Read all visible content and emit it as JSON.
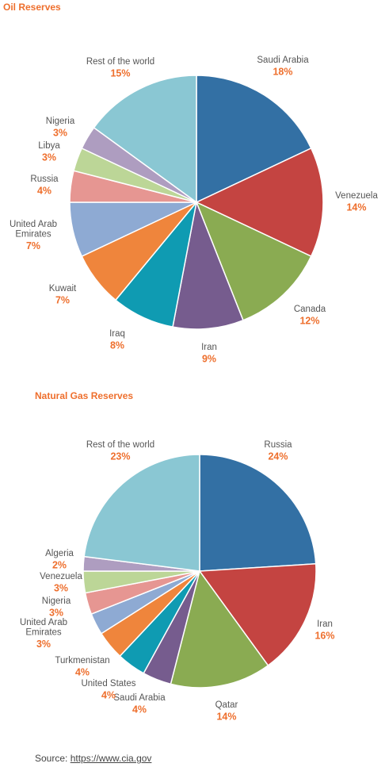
{
  "chart_data": [
    {
      "type": "pie",
      "title": "Oil Reserves",
      "slices": [
        {
          "label": "Saudi Arabia",
          "display": [
            "Saudi Arabia"
          ],
          "pct": 18,
          "pct_label": "18%",
          "color": "#3370a4"
        },
        {
          "label": "Venezuela",
          "display": [
            "Venezuela"
          ],
          "pct": 14,
          "pct_label": "14%",
          "color": "#c44441"
        },
        {
          "label": "Canada",
          "display": [
            "Canada"
          ],
          "pct": 12,
          "pct_label": "12%",
          "color": "#8aab52"
        },
        {
          "label": "Iran",
          "display": [
            "Iran"
          ],
          "pct": 9,
          "pct_label": "9%",
          "color": "#765c8e"
        },
        {
          "label": "Iraq",
          "display": [
            "Iraq"
          ],
          "pct": 8,
          "pct_label": "8%",
          "color": "#0f9bb2"
        },
        {
          "label": "Kuwait",
          "display": [
            "Kuwait"
          ],
          "pct": 7,
          "pct_label": "7%",
          "color": "#ef853c"
        },
        {
          "label": "United Arab Emirates",
          "display": [
            "United Arab",
            "Emirates"
          ],
          "pct": 7,
          "pct_label": "7%",
          "color": "#8eaad3"
        },
        {
          "label": "Russia",
          "display": [
            "Russia"
          ],
          "pct": 4,
          "pct_label": "4%",
          "color": "#e69692"
        },
        {
          "label": "Libya",
          "display": [
            "Libya"
          ],
          "pct": 3,
          "pct_label": "3%",
          "color": "#bcd697"
        },
        {
          "label": "Nigeria",
          "display": [
            "Nigeria"
          ],
          "pct": 3,
          "pct_label": "3%",
          "color": "#ae9dc0"
        },
        {
          "label": "Rest of the world",
          "display": [
            "Rest of the world"
          ],
          "pct": 15,
          "pct_label": "15%",
          "color": "#8ac7d3"
        }
      ]
    },
    {
      "type": "pie",
      "title": "Natural Gas Reserves",
      "slices": [
        {
          "label": "Russia",
          "display": [
            "Russia"
          ],
          "pct": 24,
          "pct_label": "24%",
          "color": "#3370a4"
        },
        {
          "label": "Iran",
          "display": [
            "Iran"
          ],
          "pct": 16,
          "pct_label": "16%",
          "color": "#c44441"
        },
        {
          "label": "Qatar",
          "display": [
            "Qatar"
          ],
          "pct": 14,
          "pct_label": "14%",
          "color": "#8aab52"
        },
        {
          "label": "Saudi Arabia",
          "display": [
            "Saudi Arabia"
          ],
          "pct": 4,
          "pct_label": "4%",
          "color": "#765c8e"
        },
        {
          "label": "United States",
          "display": [
            "United States"
          ],
          "pct": 4,
          "pct_label": "4%",
          "color": "#0f9bb2"
        },
        {
          "label": "Turkmenistan",
          "display": [
            "Turkmenistan"
          ],
          "pct": 4,
          "pct_label": "4%",
          "color": "#ef853c"
        },
        {
          "label": "United Arab Emirates",
          "display": [
            "United Arab",
            "Emirates"
          ],
          "pct": 3,
          "pct_label": "3%",
          "color": "#8eaad3"
        },
        {
          "label": "Nigeria",
          "display": [
            "Nigeria"
          ],
          "pct": 3,
          "pct_label": "3%",
          "color": "#e69692"
        },
        {
          "label": "Venezuela",
          "display": [
            "Venezuela"
          ],
          "pct": 3,
          "pct_label": "3%",
          "color": "#bcd697"
        },
        {
          "label": "Algeria",
          "display": [
            "Algeria"
          ],
          "pct": 2,
          "pct_label": "2%",
          "color": "#ae9dc0"
        },
        {
          "label": "Rest of the world",
          "display": [
            "Rest of the world"
          ],
          "pct": 23,
          "pct_label": "23%",
          "color": "#8ac7d3"
        }
      ]
    }
  ],
  "source": {
    "prefix": "Source: ",
    "link_text": "https://www.cia.gov"
  }
}
